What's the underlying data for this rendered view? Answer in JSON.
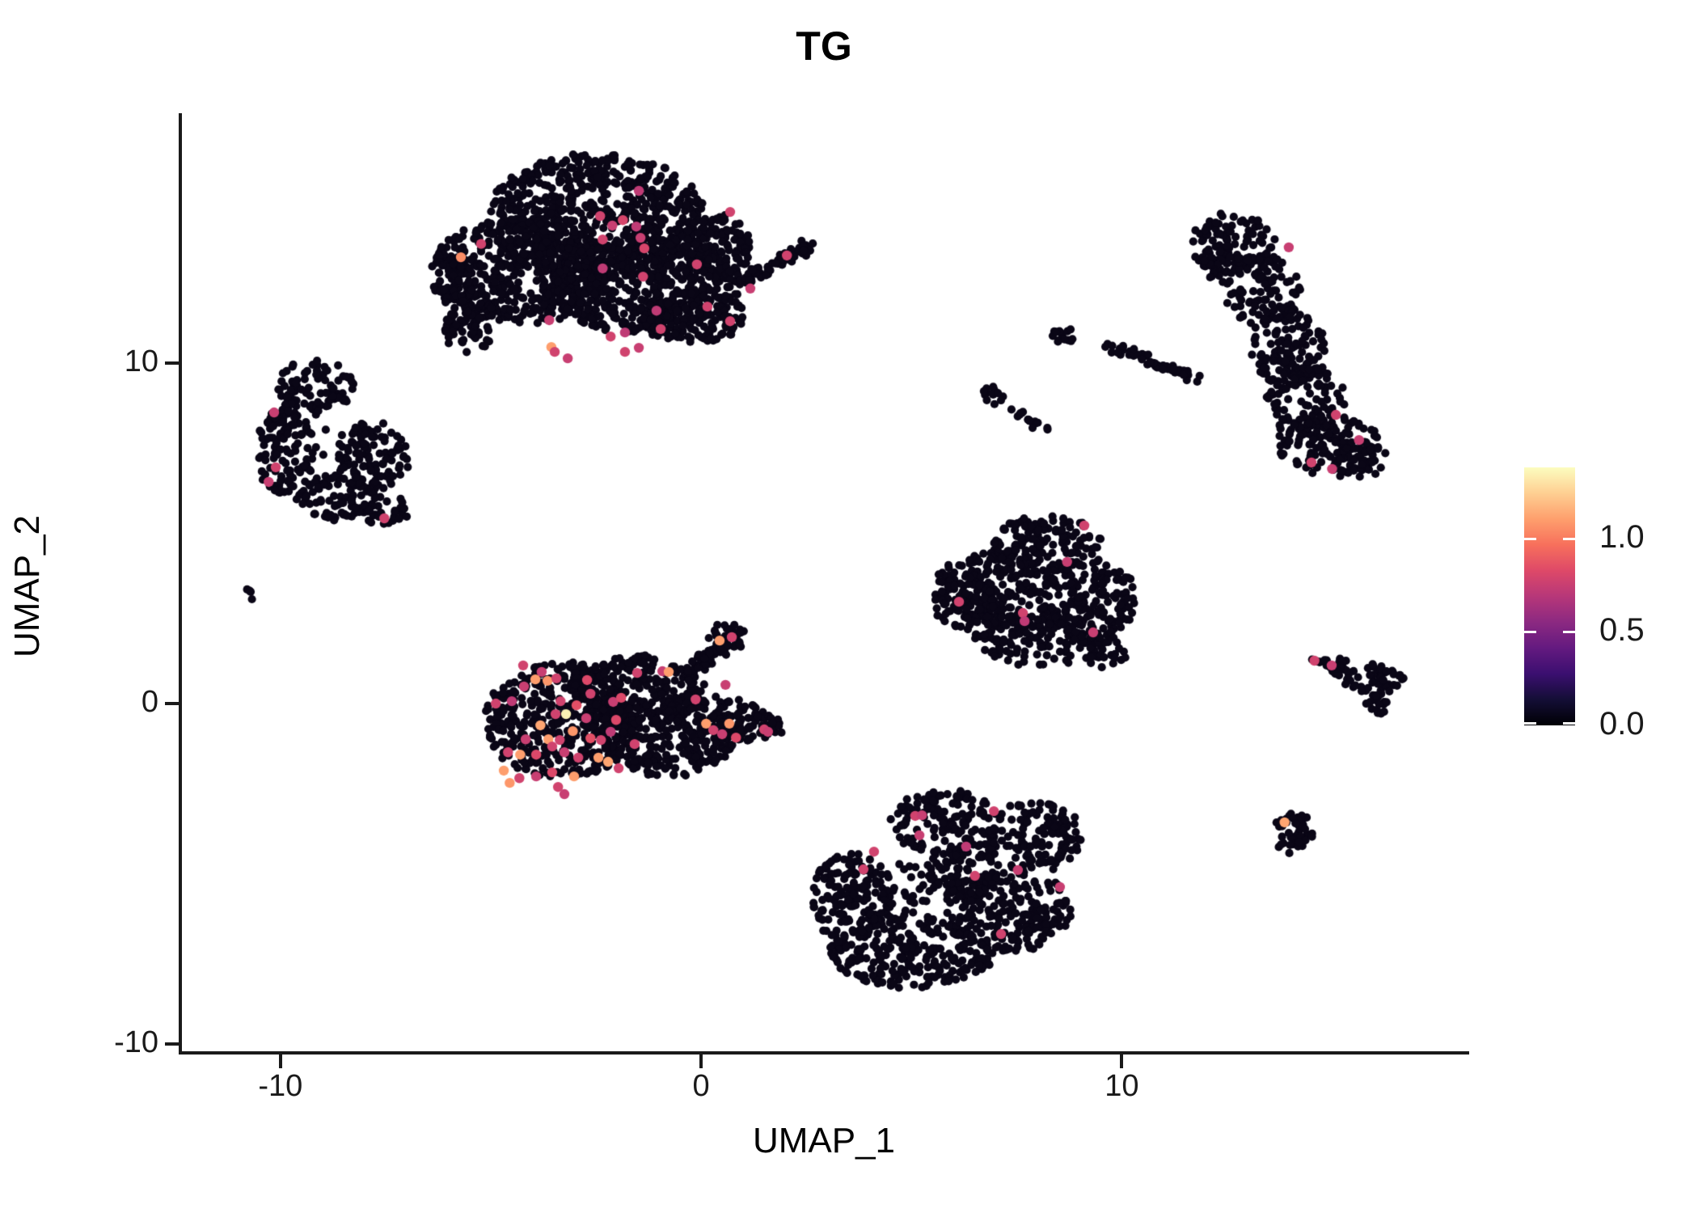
{
  "chart_data": {
    "type": "scatter",
    "title": "TG",
    "xlabel": "UMAP_1",
    "ylabel": "UMAP_2",
    "xlim": [
      -12.38,
      18.22
    ],
    "ylim": [
      -10.26,
      17.34
    ],
    "x_tick_values": [
      -10,
      0,
      10
    ],
    "x_tick_labels": [
      "-10",
      "0",
      "10"
    ],
    "y_tick_values": [
      -10,
      0,
      10
    ],
    "y_tick_labels": [
      "-10",
      "0",
      "10"
    ],
    "grid": false,
    "background": "#ffffff",
    "base_point_color": "#0a0616",
    "colorbar": {
      "domain": [
        0,
        1.38
      ],
      "tick_values": [
        0,
        0.5,
        1
      ],
      "tick_labels": [
        "0.0",
        "0.5",
        "1.0"
      ],
      "colormap": "magma",
      "stops": [
        "#000004",
        "#140e36",
        "#3b0f70",
        "#641a80",
        "#8c2981",
        "#b73779",
        "#de4968",
        "#f7705c",
        "#fe9f6d",
        "#fecf92",
        "#fcfdbf"
      ]
    },
    "clusters": [
      {
        "name": "top-center-main",
        "d": 1.0,
        "blobs": [
          [
            -2.5,
            14.3,
            2.6,
            1.85
          ],
          [
            -4.3,
            12.7,
            2.1,
            1.55
          ],
          [
            -1.3,
            12.3,
            2.2,
            1.5
          ],
          [
            0.2,
            13.4,
            1.0,
            1.05
          ],
          [
            -5.5,
            11.2,
            0.6,
            1.0
          ],
          [
            -0.2,
            11.35,
            1.3,
            0.75
          ],
          [
            -5.9,
            12.4,
            0.5,
            0.7
          ]
        ],
        "streaks": [
          [
            0.9,
            12.35,
            2.6,
            13.45,
            0.22,
            70
          ]
        ]
      },
      {
        "name": "top-right-crescent",
        "d": 0.78,
        "blobs": [
          [
            12.6,
            13.5,
            1.05,
            0.9
          ],
          [
            13.35,
            12.1,
            0.9,
            1.05
          ],
          [
            13.95,
            10.5,
            0.9,
            1.15
          ],
          [
            14.35,
            8.9,
            0.95,
            1.05
          ],
          [
            14.95,
            7.55,
            1.25,
            0.9
          ],
          [
            15.75,
            7.2,
            0.55,
            0.55
          ],
          [
            12.35,
            12.9,
            0.5,
            0.6
          ]
        ],
        "streaks": []
      },
      {
        "name": "mid-right-triangle",
        "d": 0.9,
        "blobs": [
          [
            8.2,
            4.7,
            1.3,
            0.85
          ],
          [
            7.0,
            3.4,
            1.45,
            1.05
          ],
          [
            9.2,
            3.0,
            1.15,
            1.25
          ],
          [
            6.3,
            2.9,
            0.75,
            0.8
          ],
          [
            8.0,
            1.9,
            1.5,
            0.8
          ],
          [
            9.6,
            1.5,
            0.5,
            0.5
          ]
        ],
        "streaks": []
      },
      {
        "name": "center-left",
        "d": 1.0,
        "blobs": [
          [
            -3.3,
            -0.5,
            1.85,
            1.7
          ],
          [
            -1.5,
            0.35,
            1.6,
            1.05
          ],
          [
            -0.8,
            -1.0,
            1.6,
            1.15
          ],
          [
            0.55,
            -0.5,
            1.0,
            0.7
          ],
          [
            1.5,
            -0.7,
            0.45,
            0.4
          ],
          [
            0.62,
            1.95,
            0.48,
            0.42
          ]
        ],
        "streaks": [
          [
            -0.25,
            0.9,
            0.55,
            1.8,
            0.25,
            60
          ]
        ]
      },
      {
        "name": "bottom-center",
        "d": 0.85,
        "blobs": [
          [
            5.8,
            -3.5,
            1.3,
            0.95
          ],
          [
            7.9,
            -3.9,
            1.15,
            1.05
          ],
          [
            3.6,
            -5.7,
            1.0,
            1.3
          ],
          [
            5.0,
            -7.3,
            2.0,
            1.05
          ],
          [
            7.3,
            -6.1,
            1.5,
            1.25
          ],
          [
            6.2,
            -5.0,
            0.9,
            0.7
          ],
          [
            4.4,
            -5.5,
            1.2,
            0.9,
            40
          ]
        ],
        "streaks": []
      },
      {
        "name": "left",
        "d": 0.85,
        "blobs": [
          [
            -9.2,
            9.3,
            0.95,
            0.8
          ],
          [
            -9.9,
            7.4,
            0.7,
            1.25
          ],
          [
            -8.6,
            6.1,
            1.0,
            0.7
          ],
          [
            -7.8,
            7.2,
            0.85,
            1.05
          ],
          [
            -7.5,
            5.7,
            0.55,
            0.5
          ],
          [
            -8.9,
            7.5,
            1.0,
            0.8,
            14
          ]
        ],
        "streaks": []
      },
      {
        "name": "left-tiny-pair",
        "d": 1.0,
        "blobs": [
          [
            -10.75,
            3.15,
            0.16,
            0.2,
            4
          ]
        ],
        "streaks": []
      },
      {
        "name": "mid-fragments",
        "d": 1.0,
        "blobs": [
          [
            8.55,
            10.8,
            0.3,
            0.3,
            14
          ],
          [
            6.95,
            9.05,
            0.28,
            0.25,
            12
          ]
        ],
        "streaks": [
          [
            9.6,
            10.55,
            11.9,
            9.5,
            0.18,
            55
          ],
          [
            7.2,
            8.8,
            8.3,
            7.95,
            0.12,
            18
          ]
        ]
      },
      {
        "name": "right-wedge",
        "d": 1.0,
        "blobs": [
          [
            15.1,
            1.1,
            0.3,
            0.28,
            20
          ],
          [
            15.95,
            0.72,
            0.78,
            0.45
          ],
          [
            16.1,
            0.02,
            0.3,
            0.32,
            18
          ]
        ],
        "streaks": [
          [
            14.55,
            1.28,
            15.3,
            1.0,
            0.12,
            14
          ]
        ]
      },
      {
        "name": "bottom-right-small",
        "d": 1.0,
        "blobs": [
          [
            14.1,
            -3.8,
            0.52,
            0.62
          ]
        ],
        "streaks": []
      }
    ],
    "highlights": [
      [
        -1.48,
        15.06,
        0.72
      ],
      [
        0.69,
        14.44,
        0.78
      ],
      [
        -2.4,
        14.32,
        0.78
      ],
      [
        -2.11,
        14.04,
        0.75
      ],
      [
        -1.86,
        14.2,
        0.8
      ],
      [
        -1.54,
        14.01,
        0.72
      ],
      [
        -2.34,
        13.63,
        0.78
      ],
      [
        -1.44,
        13.68,
        0.75
      ],
      [
        -1.35,
        13.37,
        0.8
      ],
      [
        -0.1,
        12.9,
        0.78
      ],
      [
        -2.34,
        12.78,
        0.72
      ],
      [
        -1.38,
        12.54,
        0.78
      ],
      [
        2.04,
        13.16,
        0.78
      ],
      [
        1.17,
        12.19,
        0.75
      ],
      [
        0.15,
        11.66,
        0.78
      ],
      [
        -1.06,
        11.54,
        0.72
      ],
      [
        0.69,
        11.23,
        0.78
      ],
      [
        -3.61,
        11.26,
        0.75
      ],
      [
        -2.15,
        10.78,
        0.78
      ],
      [
        -1.81,
        10.9,
        0.72
      ],
      [
        -0.96,
        11.0,
        0.78
      ],
      [
        -1.48,
        10.45,
        0.75
      ],
      [
        -1.81,
        10.33,
        0.78
      ],
      [
        -3.56,
        10.47,
        1.1
      ],
      [
        -3.48,
        10.33,
        0.78
      ],
      [
        -3.17,
        10.14,
        0.75
      ],
      [
        -5.23,
        13.5,
        0.78
      ],
      [
        -5.71,
        13.11,
        1.05
      ],
      [
        13.97,
        13.4,
        0.75
      ],
      [
        15.09,
        8.48,
        0.78
      ],
      [
        15.64,
        7.74,
        0.75
      ],
      [
        14.51,
        7.08,
        0.78
      ],
      [
        15.0,
        6.89,
        0.75
      ],
      [
        9.11,
        5.23,
        0.78
      ],
      [
        8.7,
        4.16,
        0.75
      ],
      [
        6.13,
        2.99,
        0.78
      ],
      [
        7.65,
        2.66,
        0.78
      ],
      [
        7.69,
        2.42,
        0.72
      ],
      [
        9.32,
        2.09,
        0.75
      ],
      [
        0.44,
        1.85,
        1.1
      ],
      [
        0.73,
        1.95,
        0.78
      ],
      [
        -4.23,
        1.12,
        0.78
      ],
      [
        -3.79,
        0.93,
        0.75
      ],
      [
        -3.94,
        0.71,
        1.1
      ],
      [
        -3.65,
        0.67,
        1.08
      ],
      [
        -3.44,
        0.74,
        0.78
      ],
      [
        -2.71,
        0.69,
        0.82
      ],
      [
        -4.21,
        0.5,
        0.75
      ],
      [
        -4.88,
        0.0,
        0.78
      ],
      [
        -4.5,
        0.07,
        0.72
      ],
      [
        -3.34,
        0.07,
        0.78
      ],
      [
        -2.96,
        -0.05,
        0.85
      ],
      [
        -2.63,
        0.29,
        0.78
      ],
      [
        -2.09,
        0.05,
        0.75
      ],
      [
        -1.9,
        0.17,
        0.82
      ],
      [
        -1.52,
        0.9,
        0.78
      ],
      [
        -0.92,
        0.95,
        0.75
      ],
      [
        -0.77,
        0.93,
        1.1
      ],
      [
        -3.46,
        -0.31,
        0.78
      ],
      [
        -3.21,
        -0.31,
        1.35
      ],
      [
        -2.73,
        -0.43,
        0.75
      ],
      [
        -2.02,
        -0.48,
        0.82
      ],
      [
        -3.82,
        -0.64,
        1.12
      ],
      [
        -3.05,
        -0.81,
        1.08
      ],
      [
        -3.63,
        -1.05,
        1.1
      ],
      [
        -3.36,
        -1.07,
        0.78
      ],
      [
        -4.17,
        -1.05,
        0.75
      ],
      [
        -4.59,
        -1.43,
        0.78
      ],
      [
        -4.3,
        -1.5,
        1.1
      ],
      [
        -3.92,
        -1.5,
        0.82
      ],
      [
        -3.54,
        -1.26,
        0.78
      ],
      [
        -3.25,
        -1.43,
        0.75
      ],
      [
        -2.92,
        -1.59,
        0.78
      ],
      [
        -2.63,
        -1.02,
        0.85
      ],
      [
        -2.38,
        -1.07,
        0.78
      ],
      [
        -2.44,
        -1.59,
        1.1
      ],
      [
        -2.21,
        -1.71,
        1.12
      ],
      [
        -1.96,
        -1.9,
        0.78
      ],
      [
        -4.69,
        -1.97,
        1.1
      ],
      [
        -4.55,
        -2.33,
        1.08
      ],
      [
        -4.32,
        -2.19,
        0.78
      ],
      [
        -3.92,
        -2.14,
        0.75
      ],
      [
        -3.54,
        -2.02,
        0.82
      ],
      [
        -3.4,
        -2.45,
        0.78
      ],
      [
        -3.02,
        -2.14,
        1.1
      ],
      [
        -3.25,
        -2.66,
        0.75
      ],
      [
        -0.13,
        0.12,
        0.78
      ],
      [
        0.58,
        0.55,
        0.75
      ],
      [
        0.12,
        -0.59,
        1.1
      ],
      [
        0.67,
        -0.59,
        1.08
      ],
      [
        0.29,
        -0.78,
        0.78
      ],
      [
        0.5,
        -0.9,
        0.75
      ],
      [
        0.83,
        -1.0,
        0.82
      ],
      [
        1.5,
        -0.76,
        0.78
      ],
      [
        1.59,
        -0.83,
        0.75
      ],
      [
        -1.58,
        -1.19,
        0.78
      ],
      [
        -2.15,
        -0.83,
        0.72
      ],
      [
        5.09,
        -3.3,
        0.78
      ],
      [
        5.25,
        -3.28,
        0.75
      ],
      [
        6.96,
        -3.16,
        0.78
      ],
      [
        5.19,
        -3.87,
        0.75
      ],
      [
        4.11,
        -4.35,
        0.78
      ],
      [
        6.3,
        -4.2,
        0.72
      ],
      [
        3.86,
        -4.87,
        0.78
      ],
      [
        7.53,
        -4.89,
        0.75
      ],
      [
        6.51,
        -5.06,
        0.78
      ],
      [
        8.53,
        -5.39,
        0.75
      ],
      [
        7.13,
        -6.77,
        0.78
      ],
      [
        -10.15,
        8.55,
        0.75
      ],
      [
        -10.11,
        6.94,
        0.78
      ],
      [
        -10.28,
        6.51,
        0.75
      ],
      [
        -7.53,
        5.44,
        0.78
      ],
      [
        14.58,
        1.26,
        0.78
      ],
      [
        14.99,
        1.12,
        0.75
      ],
      [
        13.87,
        -3.49,
        1.12
      ]
    ]
  }
}
